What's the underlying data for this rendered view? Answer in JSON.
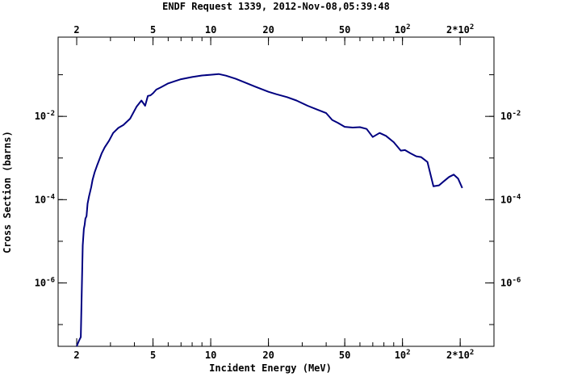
{
  "chart_data": {
    "type": "line",
    "title": "ENDF Request 1339, 2012-Nov-08,05:39:48",
    "xlabel": "Incident Energy (MeV)",
    "ylabel": "Cross Section (barns)",
    "x_scale": "log",
    "y_scale": "log",
    "xlim": [
      1.6,
      300
    ],
    "ylim": [
      3e-08,
      0.8
    ],
    "grid": false,
    "line_color": "#000080",
    "x_ticks": [
      {
        "value": 2,
        "label": "2"
      },
      {
        "value": 5,
        "label": "5"
      },
      {
        "value": 10,
        "label": "10"
      },
      {
        "value": 20,
        "label": "20"
      },
      {
        "value": 50,
        "label": "50"
      },
      {
        "value": 100,
        "label": "10",
        "sup": "2"
      },
      {
        "value": 200,
        "label": "2*10",
        "sup": "2"
      }
    ],
    "y_ticks": [
      {
        "value": 0.01,
        "label": "10",
        "sup": "-2"
      },
      {
        "value": 0.0001,
        "label": "10",
        "sup": "-4"
      },
      {
        "value": 1e-06,
        "label": "10",
        "sup": "-6"
      }
    ],
    "series": [
      {
        "x": [
          2.0,
          2.05,
          2.1,
          2.15,
          2.18,
          2.2,
          2.22,
          2.25,
          2.28,
          2.32,
          2.38,
          2.42,
          2.48,
          2.55,
          2.62,
          2.7,
          2.8,
          2.95,
          3.1,
          3.3,
          3.5,
          3.8,
          4.1,
          4.35,
          4.55,
          4.7,
          4.85,
          5.0,
          5.2,
          5.5,
          6.0,
          6.5,
          7.0,
          8.0,
          9.0,
          10.0,
          11.0,
          12.0,
          13.5,
          15.0,
          17.0,
          20.0,
          22.0,
          25.0,
          28.0,
          32.0,
          36.0,
          40.0,
          43.0,
          46.0,
          50.0,
          55.0,
          60.0,
          65.0,
          70.0,
          76.0,
          82.0,
          90.0,
          98.0,
          103.0,
          110.0,
          118.0,
          125.0,
          135.0,
          145.0,
          155.0,
          165.0,
          175.0,
          185.0,
          195.0,
          205.0
        ],
        "y": [
          3e-08,
          4e-08,
          5e-08,
          8e-06,
          2e-05,
          2.5e-05,
          3.5e-05,
          4e-05,
          8e-05,
          0.00012,
          0.0002,
          0.0003,
          0.00045,
          0.00065,
          0.0009,
          0.0013,
          0.0018,
          0.0026,
          0.004,
          0.0053,
          0.0062,
          0.0088,
          0.017,
          0.024,
          0.018,
          0.031,
          0.032,
          0.036,
          0.044,
          0.05,
          0.062,
          0.07,
          0.078,
          0.088,
          0.096,
          0.1,
          0.104,
          0.095,
          0.08,
          0.066,
          0.052,
          0.039,
          0.034,
          0.029,
          0.024,
          0.018,
          0.0145,
          0.012,
          0.0082,
          0.007,
          0.0056,
          0.0054,
          0.0055,
          0.005,
          0.0032,
          0.004,
          0.0034,
          0.0024,
          0.0015,
          0.00155,
          0.0013,
          0.0011,
          0.00105,
          0.0008,
          0.00021,
          0.00022,
          0.00028,
          0.00035,
          0.0004,
          0.00032,
          0.00019
        ]
      }
    ]
  }
}
